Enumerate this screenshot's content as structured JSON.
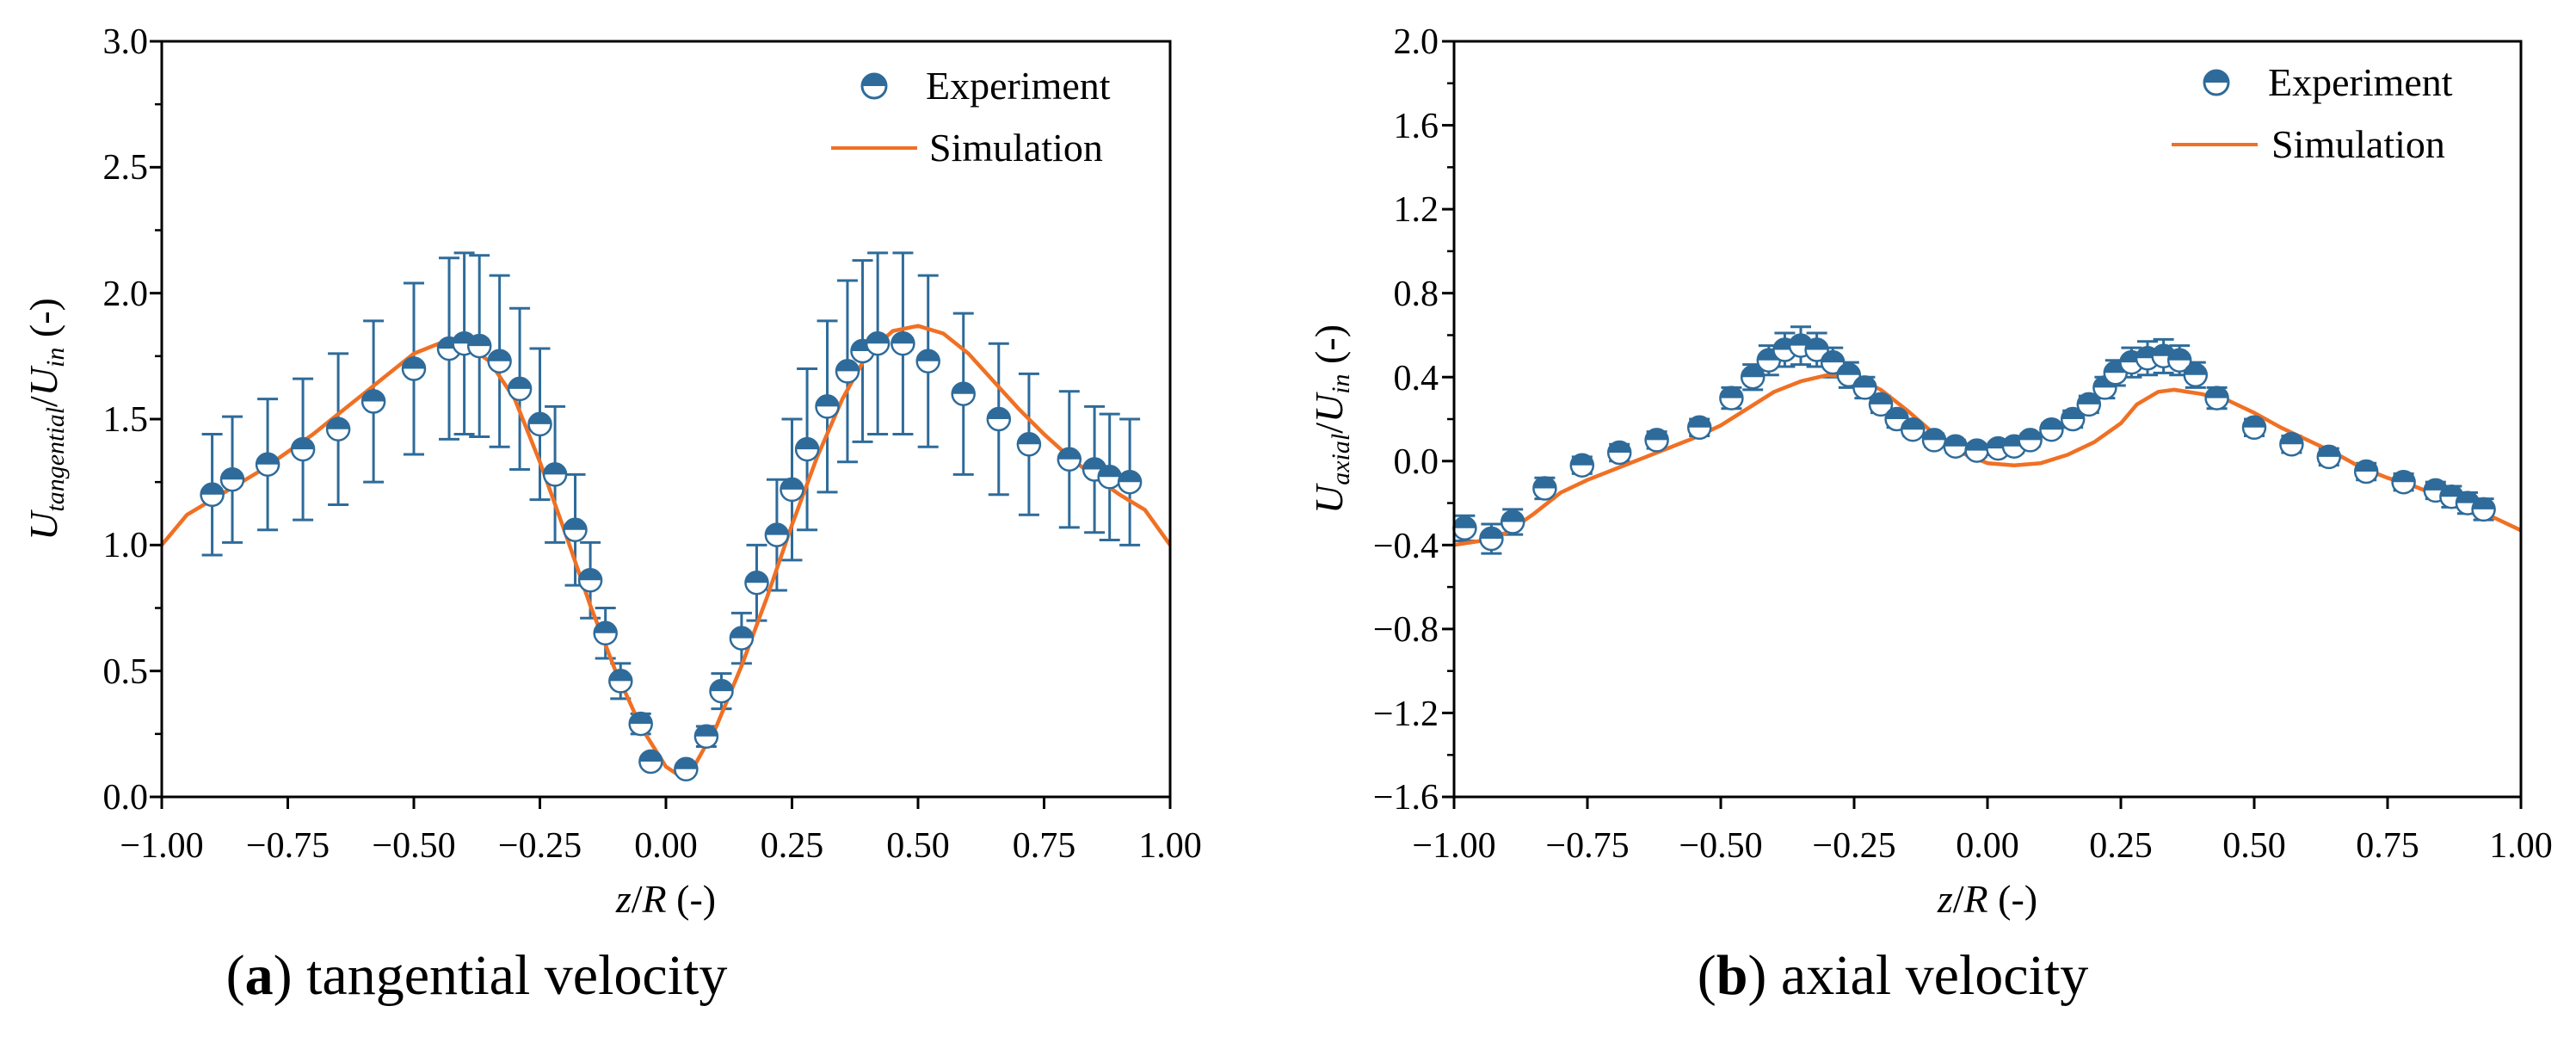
{
  "chart_data": [
    {
      "type": "scatter",
      "panel_label": "a",
      "caption_text": " tangential velocity",
      "xlabel": "z/R (-)",
      "ylabel": "U_tangential/U_in (-)",
      "xlim": [
        -1.0,
        1.0
      ],
      "ylim": [
        0.0,
        3.0
      ],
      "x_ticks": [
        "−1.00",
        "−0.75",
        "−0.50",
        "−0.25",
        "0.00",
        "0.25",
        "0.50",
        "0.75",
        "1.00"
      ],
      "y_ticks": [
        "0.0",
        "0.5",
        "1.0",
        "1.5",
        "2.0",
        "2.5",
        "3.0"
      ],
      "legend": {
        "position": "top-right",
        "entries": [
          "Experiment",
          "Simulation"
        ]
      },
      "series": [
        {
          "name": "Experiment",
          "kind": "points_with_error_bars",
          "x": [
            -0.9,
            -0.86,
            -0.79,
            -0.72,
            -0.65,
            -0.58,
            -0.5,
            -0.43,
            -0.4,
            -0.37,
            -0.33,
            -0.29,
            -0.25,
            -0.22,
            -0.18,
            -0.15,
            -0.12,
            -0.09,
            -0.05,
            -0.03,
            0.04,
            0.08,
            0.11,
            0.15,
            0.18,
            0.22,
            0.25,
            0.28,
            0.32,
            0.36,
            0.39,
            0.42,
            0.47,
            0.52,
            0.59,
            0.66,
            0.72,
            0.8,
            0.85,
            0.88,
            0.92
          ],
          "y": [
            1.2,
            1.26,
            1.32,
            1.38,
            1.46,
            1.57,
            1.7,
            1.78,
            1.8,
            1.79,
            1.73,
            1.62,
            1.48,
            1.28,
            1.06,
            0.86,
            0.65,
            0.46,
            0.29,
            0.14,
            0.11,
            0.24,
            0.42,
            0.63,
            0.85,
            1.04,
            1.22,
            1.38,
            1.55,
            1.69,
            1.77,
            1.8,
            1.8,
            1.73,
            1.6,
            1.5,
            1.4,
            1.34,
            1.3,
            1.27,
            1.25
          ],
          "err": [
            0.24,
            0.25,
            0.26,
            0.28,
            0.3,
            0.32,
            0.34,
            0.36,
            0.36,
            0.36,
            0.34,
            0.32,
            0.3,
            0.27,
            0.22,
            0.15,
            0.1,
            0.07,
            0.04,
            0.02,
            0.02,
            0.04,
            0.07,
            0.1,
            0.15,
            0.22,
            0.28,
            0.32,
            0.34,
            0.36,
            0.36,
            0.36,
            0.36,
            0.34,
            0.32,
            0.3,
            0.28,
            0.27,
            0.25,
            0.25,
            0.25
          ]
        },
        {
          "name": "Simulation",
          "kind": "line",
          "x": [
            -1.0,
            -0.95,
            -0.9,
            -0.85,
            -0.8,
            -0.75,
            -0.7,
            -0.65,
            -0.6,
            -0.55,
            -0.5,
            -0.45,
            -0.4,
            -0.35,
            -0.3,
            -0.25,
            -0.2,
            -0.15,
            -0.1,
            -0.05,
            0.0,
            0.03,
            0.05,
            0.1,
            0.15,
            0.2,
            0.25,
            0.3,
            0.35,
            0.4,
            0.45,
            0.5,
            0.55,
            0.6,
            0.65,
            0.7,
            0.75,
            0.8,
            0.85,
            0.9,
            0.95,
            1.0
          ],
          "y": [
            1.0,
            1.12,
            1.18,
            1.24,
            1.3,
            1.37,
            1.44,
            1.52,
            1.6,
            1.68,
            1.76,
            1.8,
            1.8,
            1.73,
            1.58,
            1.33,
            1.05,
            0.76,
            0.5,
            0.28,
            0.12,
            0.08,
            0.1,
            0.28,
            0.52,
            0.79,
            1.08,
            1.35,
            1.58,
            1.76,
            1.85,
            1.87,
            1.84,
            1.76,
            1.65,
            1.54,
            1.44,
            1.35,
            1.27,
            1.2,
            1.14,
            1.0
          ]
        }
      ]
    },
    {
      "type": "scatter",
      "panel_label": "b",
      "caption_text": " axial velocity",
      "xlabel": "z/R (-)",
      "ylabel": "U_axial/U_in (-)",
      "xlim": [
        -1.0,
        1.0
      ],
      "ylim": [
        -1.6,
        2.0
      ],
      "x_ticks": [
        "−1.00",
        "−0.75",
        "−0.50",
        "−0.25",
        "0.00",
        "0.25",
        "0.50",
        "0.75",
        "1.00"
      ],
      "y_ticks": [
        "−1.6",
        "−1.2",
        "−0.8",
        "−0.4",
        "0.0",
        "0.4",
        "0.8",
        "1.2",
        "1.6",
        "2.0"
      ],
      "legend": {
        "position": "top-right",
        "entries": [
          "Experiment",
          "Simulation"
        ]
      },
      "series": [
        {
          "name": "Experiment",
          "kind": "points_with_error_bars",
          "x": [
            -0.98,
            -0.93,
            -0.89,
            -0.83,
            -0.76,
            -0.69,
            -0.62,
            -0.54,
            -0.48,
            -0.44,
            -0.41,
            -0.38,
            -0.35,
            -0.32,
            -0.29,
            -0.26,
            -0.23,
            -0.2,
            -0.17,
            -0.14,
            -0.1,
            -0.06,
            -0.02,
            0.02,
            0.05,
            0.08,
            0.12,
            0.16,
            0.19,
            0.22,
            0.24,
            0.27,
            0.3,
            0.33,
            0.36,
            0.39,
            0.43,
            0.5,
            0.57,
            0.64,
            0.71,
            0.78,
            0.84,
            0.87,
            0.9,
            0.93
          ],
          "y": [
            -0.32,
            -0.37,
            -0.29,
            -0.13,
            -0.02,
            0.04,
            0.1,
            0.16,
            0.3,
            0.4,
            0.48,
            0.53,
            0.55,
            0.53,
            0.47,
            0.41,
            0.35,
            0.27,
            0.2,
            0.15,
            0.1,
            0.07,
            0.05,
            0.06,
            0.07,
            0.1,
            0.15,
            0.2,
            0.27,
            0.35,
            0.42,
            0.47,
            0.49,
            0.5,
            0.48,
            0.41,
            0.3,
            0.16,
            0.08,
            0.02,
            -0.05,
            -0.1,
            -0.14,
            -0.17,
            -0.2,
            -0.23
          ],
          "err": [
            0.06,
            0.07,
            0.06,
            0.05,
            0.04,
            0.04,
            0.04,
            0.04,
            0.05,
            0.06,
            0.07,
            0.08,
            0.09,
            0.08,
            0.07,
            0.06,
            0.05,
            0.04,
            0.04,
            0.03,
            0.03,
            0.03,
            0.03,
            0.03,
            0.03,
            0.03,
            0.03,
            0.04,
            0.04,
            0.05,
            0.06,
            0.07,
            0.08,
            0.08,
            0.07,
            0.06,
            0.05,
            0.04,
            0.04,
            0.04,
            0.04,
            0.04,
            0.04,
            0.05,
            0.05,
            0.05
          ]
        },
        {
          "name": "Simulation",
          "kind": "line",
          "x": [
            -1.0,
            -0.95,
            -0.9,
            -0.85,
            -0.8,
            -0.75,
            -0.7,
            -0.65,
            -0.6,
            -0.55,
            -0.5,
            -0.45,
            -0.4,
            -0.35,
            -0.3,
            -0.25,
            -0.2,
            -0.15,
            -0.1,
            -0.05,
            0.0,
            0.05,
            0.1,
            0.15,
            0.2,
            0.25,
            0.28,
            0.32,
            0.35,
            0.4,
            0.45,
            0.5,
            0.55,
            0.6,
            0.65,
            0.7,
            0.75,
            0.8,
            0.85,
            0.9,
            0.95,
            1.0
          ],
          "y": [
            -0.4,
            -0.38,
            -0.34,
            -0.25,
            -0.15,
            -0.09,
            -0.04,
            0.01,
            0.06,
            0.11,
            0.17,
            0.25,
            0.33,
            0.38,
            0.41,
            0.4,
            0.34,
            0.24,
            0.13,
            0.04,
            -0.01,
            -0.02,
            -0.01,
            0.03,
            0.09,
            0.18,
            0.27,
            0.33,
            0.34,
            0.32,
            0.29,
            0.23,
            0.16,
            0.1,
            0.04,
            -0.03,
            -0.08,
            -0.12,
            -0.17,
            -0.21,
            -0.27,
            -0.33
          ]
        }
      ]
    }
  ],
  "colors": {
    "experiment": "#2e6b9a",
    "simulation": "#f07024",
    "axis": "#000000",
    "background": "#ffffff"
  }
}
